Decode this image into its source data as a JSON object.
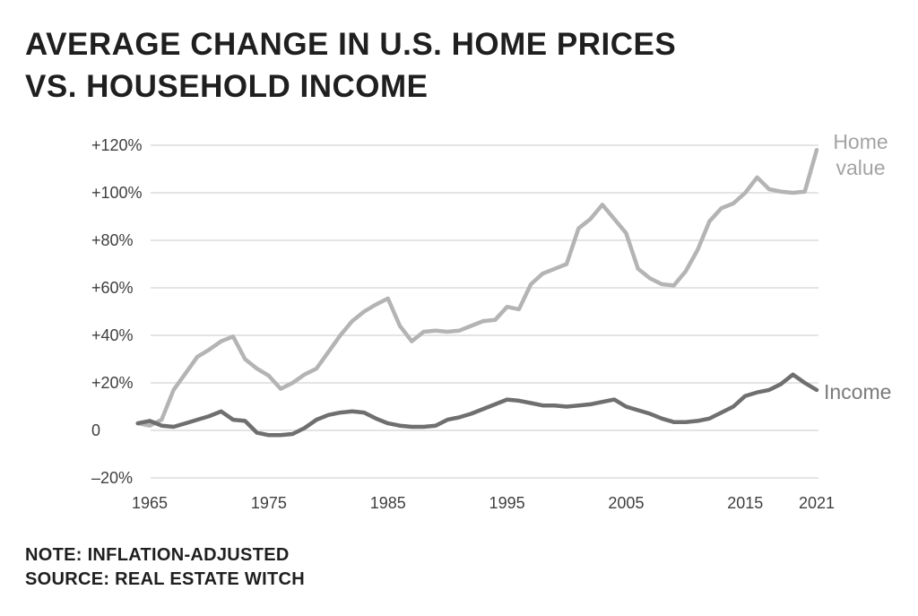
{
  "header": {
    "title_line1": "AVERAGE CHANGE IN U.S. HOME PRICES",
    "title_line2": "VS. HOUSEHOLD INCOME"
  },
  "legend": {
    "home_line1": "Home",
    "home_line2": "value",
    "income": "Income"
  },
  "footer": {
    "note": "NOTE: INFLATION-ADJUSTED",
    "source": "SOURCE: REAL ESTATE WITCH"
  },
  "colors": {
    "background": "#ffffff",
    "title": "#1f1f1f",
    "home_line": "#b4b4b4",
    "income_line": "#6f6f6f",
    "gridline": "#dcdcdc",
    "tick_label": "#3f3f3f",
    "home_label": "#a3a3a3",
    "income_label": "#7a7a7a",
    "note_text": "#1f1f1f"
  },
  "chart_data": {
    "type": "line",
    "title": "AVERAGE CHANGE IN U.S. HOME PRICES VS. HOUSEHOLD INCOME",
    "xlabel": "",
    "ylabel": "",
    "grid": "horizontal",
    "legend_position": "right-of-line-ends",
    "legend_entries": [
      "Home value",
      "Income"
    ],
    "ylim": [
      -20,
      120
    ],
    "xlim": [
      1964,
      2021
    ],
    "yticks": [
      {
        "value": 120,
        "label": "+120%"
      },
      {
        "value": 100,
        "label": "+100%"
      },
      {
        "value": 80,
        "label": "+80%"
      },
      {
        "value": 60,
        "label": "+60%"
      },
      {
        "value": 40,
        "label": "+40%"
      },
      {
        "value": 20,
        "label": "+20%"
      },
      {
        "value": 0,
        "label": "0"
      },
      {
        "value": -20,
        "label": "–20%"
      }
    ],
    "xticks": [
      {
        "value": 1965,
        "label": "1965"
      },
      {
        "value": 1975,
        "label": "1975"
      },
      {
        "value": 1985,
        "label": "1985"
      },
      {
        "value": 1995,
        "label": "1995"
      },
      {
        "value": 2005,
        "label": "2005"
      },
      {
        "value": 2015,
        "label": "2015"
      },
      {
        "value": 2021,
        "label": "2021"
      }
    ],
    "x": [
      1964,
      1965,
      1966,
      1967,
      1968,
      1969,
      1970,
      1971,
      1972,
      1973,
      1974,
      1975,
      1976,
      1977,
      1978,
      1979,
      1980,
      1981,
      1982,
      1983,
      1984,
      1985,
      1986,
      1987,
      1988,
      1989,
      1990,
      1991,
      1992,
      1993,
      1994,
      1995,
      1996,
      1997,
      1998,
      1999,
      2000,
      2001,
      2002,
      2003,
      2004,
      2005,
      2006,
      2007,
      2008,
      2009,
      2010,
      2011,
      2012,
      2013,
      2014,
      2015,
      2016,
      2017,
      2018,
      2019,
      2020,
      2021
    ],
    "series": [
      {
        "name": "Home value",
        "color_key": "home_line",
        "values": [
          3,
          2,
          4.5,
          17,
          24,
          31,
          34,
          37.5,
          39.5,
          30,
          26,
          23,
          17.5,
          20,
          23.5,
          26,
          33,
          40,
          46,
          50,
          53,
          55.5,
          44,
          37.5,
          41.5,
          42,
          41.5,
          42,
          44,
          46,
          46.5,
          52,
          51,
          61.5,
          66,
          68,
          70,
          85,
          89,
          95,
          89,
          83,
          68,
          64,
          61.5,
          61,
          67,
          76,
          88,
          93.5,
          95.5,
          100,
          106.5,
          101.5,
          100.5,
          100,
          100.5,
          118
        ]
      },
      {
        "name": "Income",
        "color_key": "income_line",
        "values": [
          3,
          4,
          2,
          1.5,
          3,
          4.5,
          6,
          8,
          4.5,
          4,
          -1,
          -2,
          -2,
          -1.5,
          1,
          4.5,
          6.5,
          7.5,
          8,
          7.5,
          5,
          3,
          2,
          1.5,
          1.5,
          2,
          4.5,
          5.5,
          7,
          9,
          11,
          13,
          12.5,
          11.5,
          10.5,
          10.5,
          10,
          10.5,
          11,
          12,
          13,
          10,
          8.5,
          7,
          5,
          3.5,
          3.5,
          4,
          5,
          7.5,
          10,
          14.5,
          16,
          17,
          19.5,
          23.5,
          20,
          17
        ]
      }
    ]
  }
}
